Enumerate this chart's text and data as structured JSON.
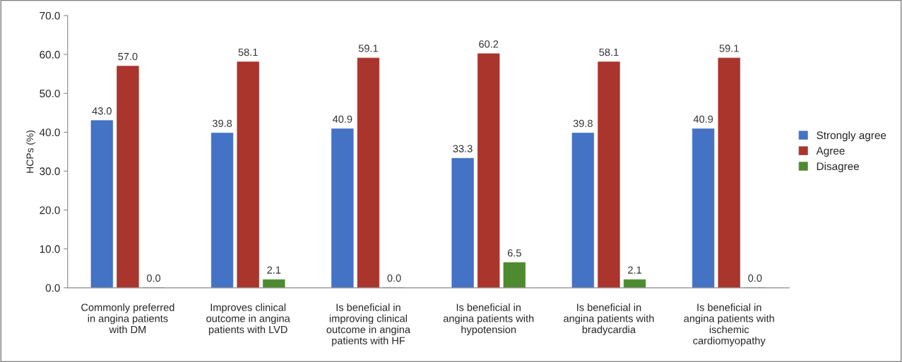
{
  "chart_data": {
    "type": "bar",
    "ylabel": "HCPs (%)",
    "categories": [
      "Commonly preferred\nin angina patients\nwith DM",
      "Improves clinical\noutcome in angina\npatients with LVD",
      "Is beneficial in\nimproving clinical\noutcome in angina\npatients with HF",
      "Is beneficial in\nangina patients with\nhypotension",
      "Is beneficial in\nangina patients with\nbradycardia",
      "Is beneficial in\nangina patients with\nischemic\ncardiomyopathy"
    ],
    "series": [
      {
        "name": "Strongly agree",
        "color": "#4472c4",
        "values": [
          43.0,
          39.8,
          40.9,
          33.3,
          39.8,
          40.9
        ]
      },
      {
        "name": "Agree",
        "color": "#a9352d",
        "values": [
          57.0,
          58.1,
          59.1,
          60.2,
          58.1,
          59.1
        ]
      },
      {
        "name": "Disagree",
        "color": "#4e8a2f",
        "values": [
          0.0,
          2.1,
          0.0,
          6.5,
          2.1,
          0.0
        ]
      }
    ],
    "ylim": [
      0,
      70
    ],
    "yticks": [
      {
        "value": 0,
        "label": "0.0"
      },
      {
        "value": 10,
        "label": "10.0"
      },
      {
        "value": 20,
        "label": "20.0"
      },
      {
        "value": 30,
        "label": "30.0"
      },
      {
        "value": 40,
        "label": "40.0"
      },
      {
        "value": 50,
        "label": "50.0"
      },
      {
        "value": 60,
        "label": "60.0"
      },
      {
        "value": 70,
        "label": "70.0"
      }
    ],
    "value_labels": [
      [
        "43.0",
        "39.8",
        "40.9",
        "33.3",
        "39.8",
        "40.9"
      ],
      [
        "57.0",
        "58.1",
        "59.1",
        "60.2",
        "58.1",
        "59.1"
      ],
      [
        "0.0",
        "2.1",
        "0.0",
        "6.5",
        "2.1",
        "0.0"
      ]
    ],
    "grid": false,
    "legend": "right"
  }
}
